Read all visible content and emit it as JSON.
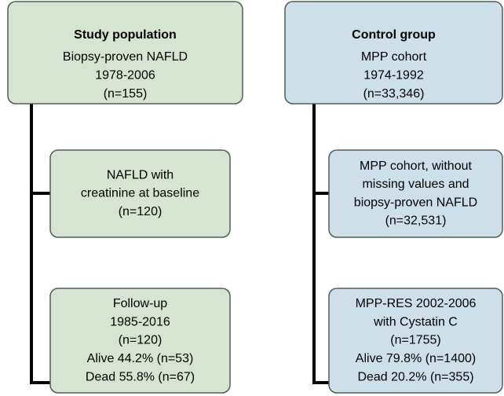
{
  "columns": [
    {
      "nodes": [
        {
          "title": "Study population",
          "lines": [
            "Biopsy-proven NAFLD",
            "1978-2006",
            "(n=155)"
          ]
        },
        {
          "lines": [
            "NAFLD with",
            "creatinine at baseline",
            "(n=120)"
          ]
        },
        {
          "lines": [
            "Follow-up",
            "1985-2016",
            "(n=120)",
            "Alive 44.2% (n=53)",
            "Dead 55.8% (n=67)"
          ]
        }
      ]
    },
    {
      "nodes": [
        {
          "title": "Control group",
          "lines": [
            "MPP cohort",
            "1974-1992",
            "(n=33,346)"
          ]
        },
        {
          "lines": [
            "MPP cohort, without",
            "missing values and",
            "biopsy-proven NAFLD",
            "(n=32,531)"
          ]
        },
        {
          "lines": [
            "MPP-RES 2002-2006",
            "with Cystatin C",
            "(n=1755)",
            "Alive 79.8% (n=1400)",
            "Dead 20.2% (n=355)"
          ]
        }
      ]
    }
  ]
}
